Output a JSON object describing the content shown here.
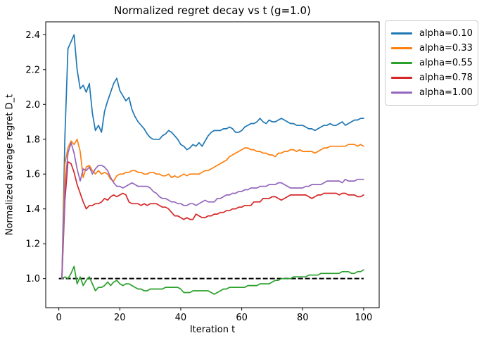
{
  "chart_data": {
    "type": "line",
    "title": "Normalized regret decay vs t (g=1.0)",
    "xlabel": "Iteration t",
    "ylabel": "Normalized average regret D_t",
    "xlim": [
      -4.3,
      105.1
    ],
    "ylim": [
      0.833,
      2.474
    ],
    "x_ticks": [
      0,
      20,
      40,
      60,
      80,
      100
    ],
    "y_ticks": [
      1.0,
      1.2,
      1.4,
      1.6,
      1.8,
      2.0,
      2.2,
      2.4
    ],
    "grid": false,
    "legend_position": "outside-upper-right",
    "x_start": 1,
    "x_step": 1,
    "baseline": {
      "y": 1.0,
      "style": "dashed",
      "color": "#000000",
      "x_from": 0,
      "x_to": 100
    },
    "series": [
      {
        "name": "alpha=0.10",
        "color": "#1f77b4",
        "values": [
          1.0,
          1.82,
          2.32,
          2.36,
          2.4,
          2.2,
          2.09,
          2.11,
          2.07,
          2.12,
          1.95,
          1.85,
          1.88,
          1.84,
          1.96,
          2.02,
          2.07,
          2.12,
          2.15,
          2.08,
          2.05,
          2.02,
          2.04,
          1.97,
          1.93,
          1.9,
          1.88,
          1.86,
          1.83,
          1.81,
          1.8,
          1.8,
          1.8,
          1.82,
          1.83,
          1.85,
          1.84,
          1.82,
          1.8,
          1.77,
          1.76,
          1.74,
          1.75,
          1.77,
          1.76,
          1.78,
          1.76,
          1.79,
          1.82,
          1.84,
          1.85,
          1.85,
          1.85,
          1.86,
          1.86,
          1.87,
          1.86,
          1.84,
          1.84,
          1.85,
          1.87,
          1.88,
          1.89,
          1.89,
          1.9,
          1.92,
          1.9,
          1.89,
          1.91,
          1.9,
          1.9,
          1.91,
          1.92,
          1.91,
          1.9,
          1.89,
          1.89,
          1.88,
          1.88,
          1.88,
          1.87,
          1.86,
          1.86,
          1.85,
          1.86,
          1.87,
          1.88,
          1.88,
          1.89,
          1.88,
          1.88,
          1.89,
          1.9,
          1.88,
          1.89,
          1.9,
          1.91,
          1.91,
          1.92,
          1.92
        ]
      },
      {
        "name": "alpha=0.33",
        "color": "#ff7f0e",
        "values": [
          1.0,
          1.66,
          1.75,
          1.79,
          1.77,
          1.8,
          1.73,
          1.58,
          1.64,
          1.65,
          1.62,
          1.6,
          1.62,
          1.6,
          1.61,
          1.6,
          1.57,
          1.56,
          1.59,
          1.6,
          1.6,
          1.61,
          1.61,
          1.62,
          1.62,
          1.61,
          1.61,
          1.6,
          1.6,
          1.61,
          1.61,
          1.6,
          1.6,
          1.59,
          1.59,
          1.6,
          1.58,
          1.59,
          1.58,
          1.59,
          1.6,
          1.59,
          1.6,
          1.6,
          1.6,
          1.6,
          1.61,
          1.62,
          1.62,
          1.63,
          1.64,
          1.65,
          1.66,
          1.67,
          1.68,
          1.7,
          1.71,
          1.72,
          1.73,
          1.74,
          1.75,
          1.75,
          1.74,
          1.74,
          1.73,
          1.73,
          1.72,
          1.72,
          1.71,
          1.71,
          1.7,
          1.72,
          1.72,
          1.73,
          1.73,
          1.74,
          1.74,
          1.73,
          1.74,
          1.73,
          1.73,
          1.73,
          1.73,
          1.72,
          1.73,
          1.74,
          1.75,
          1.75,
          1.76,
          1.76,
          1.76,
          1.76,
          1.76,
          1.76,
          1.77,
          1.77,
          1.77,
          1.76,
          1.77,
          1.76
        ]
      },
      {
        "name": "alpha=0.55",
        "color": "#2ca02c",
        "values": [
          1.0,
          1.01,
          1.0,
          1.03,
          1.07,
          0.97,
          1.01,
          0.96,
          0.99,
          1.01,
          0.97,
          0.93,
          0.95,
          0.95,
          0.96,
          0.98,
          0.96,
          0.98,
          0.99,
          0.97,
          0.96,
          0.97,
          0.97,
          0.96,
          0.95,
          0.94,
          0.94,
          0.93,
          0.93,
          0.94,
          0.94,
          0.94,
          0.94,
          0.94,
          0.95,
          0.95,
          0.95,
          0.95,
          0.95,
          0.94,
          0.92,
          0.92,
          0.92,
          0.93,
          0.93,
          0.93,
          0.93,
          0.93,
          0.93,
          0.92,
          0.91,
          0.92,
          0.93,
          0.94,
          0.94,
          0.95,
          0.95,
          0.95,
          0.95,
          0.95,
          0.95,
          0.96,
          0.96,
          0.96,
          0.96,
          0.97,
          0.97,
          0.97,
          0.97,
          0.98,
          0.99,
          0.99,
          1.0,
          1.0,
          1.0,
          1.0,
          1.01,
          1.01,
          1.01,
          1.01,
          1.01,
          1.02,
          1.02,
          1.02,
          1.02,
          1.03,
          1.03,
          1.03,
          1.03,
          1.03,
          1.03,
          1.03,
          1.04,
          1.04,
          1.04,
          1.03,
          1.03,
          1.04,
          1.04,
          1.05
        ]
      },
      {
        "name": "alpha=0.78",
        "color": "#d62728",
        "values": [
          1.0,
          1.45,
          1.67,
          1.66,
          1.61,
          1.54,
          1.49,
          1.44,
          1.4,
          1.42,
          1.42,
          1.43,
          1.43,
          1.44,
          1.46,
          1.45,
          1.47,
          1.48,
          1.47,
          1.48,
          1.49,
          1.48,
          1.44,
          1.43,
          1.43,
          1.43,
          1.42,
          1.43,
          1.42,
          1.43,
          1.43,
          1.43,
          1.42,
          1.41,
          1.41,
          1.4,
          1.38,
          1.36,
          1.36,
          1.35,
          1.34,
          1.35,
          1.34,
          1.34,
          1.37,
          1.36,
          1.35,
          1.35,
          1.36,
          1.36,
          1.37,
          1.37,
          1.38,
          1.38,
          1.39,
          1.39,
          1.4,
          1.4,
          1.41,
          1.41,
          1.42,
          1.42,
          1.42,
          1.44,
          1.44,
          1.44,
          1.46,
          1.46,
          1.46,
          1.47,
          1.47,
          1.46,
          1.45,
          1.46,
          1.47,
          1.48,
          1.48,
          1.48,
          1.48,
          1.48,
          1.48,
          1.47,
          1.46,
          1.47,
          1.48,
          1.48,
          1.49,
          1.49,
          1.49,
          1.49,
          1.49,
          1.48,
          1.49,
          1.49,
          1.48,
          1.48,
          1.48,
          1.47,
          1.47,
          1.48
        ]
      },
      {
        "name": "alpha=1.00",
        "color": "#9467bd",
        "values": [
          1.0,
          1.52,
          1.72,
          1.78,
          1.72,
          1.63,
          1.56,
          1.63,
          1.62,
          1.64,
          1.6,
          1.63,
          1.65,
          1.65,
          1.64,
          1.62,
          1.58,
          1.55,
          1.53,
          1.53,
          1.52,
          1.53,
          1.54,
          1.55,
          1.54,
          1.53,
          1.53,
          1.53,
          1.53,
          1.52,
          1.5,
          1.49,
          1.47,
          1.46,
          1.46,
          1.45,
          1.44,
          1.44,
          1.43,
          1.43,
          1.42,
          1.42,
          1.43,
          1.43,
          1.42,
          1.43,
          1.44,
          1.45,
          1.44,
          1.44,
          1.44,
          1.46,
          1.46,
          1.47,
          1.48,
          1.48,
          1.49,
          1.49,
          1.5,
          1.5,
          1.51,
          1.51,
          1.52,
          1.52,
          1.52,
          1.53,
          1.53,
          1.53,
          1.54,
          1.54,
          1.54,
          1.55,
          1.55,
          1.54,
          1.53,
          1.52,
          1.52,
          1.52,
          1.52,
          1.52,
          1.53,
          1.53,
          1.54,
          1.54,
          1.54,
          1.54,
          1.55,
          1.56,
          1.56,
          1.56,
          1.56,
          1.56,
          1.55,
          1.57,
          1.56,
          1.56,
          1.56,
          1.57,
          1.57,
          1.57
        ]
      }
    ]
  }
}
